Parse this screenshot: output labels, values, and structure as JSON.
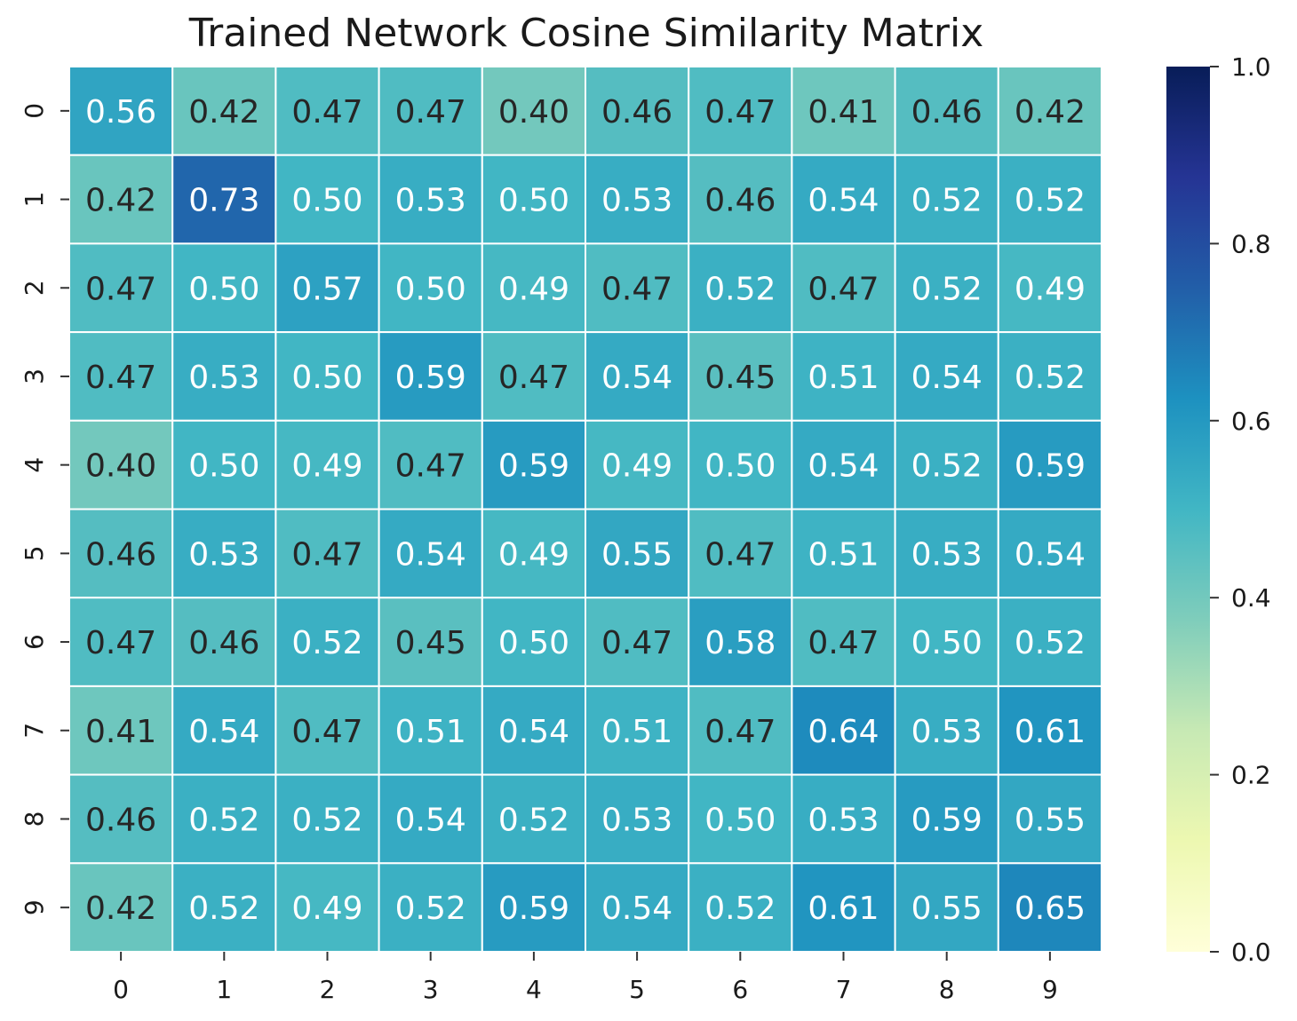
{
  "chart_data": {
    "type": "heatmap",
    "title": "Trained Network Cosine Similarity Matrix",
    "xlabel": "",
    "ylabel": "",
    "x_categories": [
      "0",
      "1",
      "2",
      "3",
      "4",
      "5",
      "6",
      "7",
      "8",
      "9"
    ],
    "y_categories": [
      "0",
      "1",
      "2",
      "3",
      "4",
      "5",
      "6",
      "7",
      "8",
      "9"
    ],
    "values": [
      [
        0.56,
        0.42,
        0.47,
        0.47,
        0.4,
        0.46,
        0.47,
        0.41,
        0.46,
        0.42
      ],
      [
        0.42,
        0.73,
        0.5,
        0.53,
        0.5,
        0.53,
        0.46,
        0.54,
        0.52,
        0.52
      ],
      [
        0.47,
        0.5,
        0.57,
        0.5,
        0.49,
        0.47,
        0.52,
        0.47,
        0.52,
        0.49
      ],
      [
        0.47,
        0.53,
        0.5,
        0.59,
        0.47,
        0.54,
        0.45,
        0.51,
        0.54,
        0.52
      ],
      [
        0.4,
        0.5,
        0.49,
        0.47,
        0.59,
        0.49,
        0.5,
        0.54,
        0.52,
        0.59
      ],
      [
        0.46,
        0.53,
        0.47,
        0.54,
        0.49,
        0.55,
        0.47,
        0.51,
        0.53,
        0.54
      ],
      [
        0.47,
        0.46,
        0.52,
        0.45,
        0.5,
        0.47,
        0.58,
        0.47,
        0.5,
        0.52
      ],
      [
        0.41,
        0.54,
        0.47,
        0.51,
        0.54,
        0.51,
        0.47,
        0.64,
        0.53,
        0.61
      ],
      [
        0.46,
        0.52,
        0.52,
        0.54,
        0.52,
        0.53,
        0.5,
        0.53,
        0.59,
        0.55
      ],
      [
        0.42,
        0.52,
        0.49,
        0.52,
        0.59,
        0.54,
        0.52,
        0.61,
        0.55,
        0.65
      ]
    ],
    "colorbar": {
      "min": 0.0,
      "max": 1.0,
      "ticks": [
        "0.0",
        "0.2",
        "0.4",
        "0.6",
        "0.8",
        "1.0"
      ],
      "colormap": "YlGnBu"
    },
    "annotation_text_colors": {
      "dark": "#262626",
      "light": "#ffffff"
    },
    "grid": false
  }
}
